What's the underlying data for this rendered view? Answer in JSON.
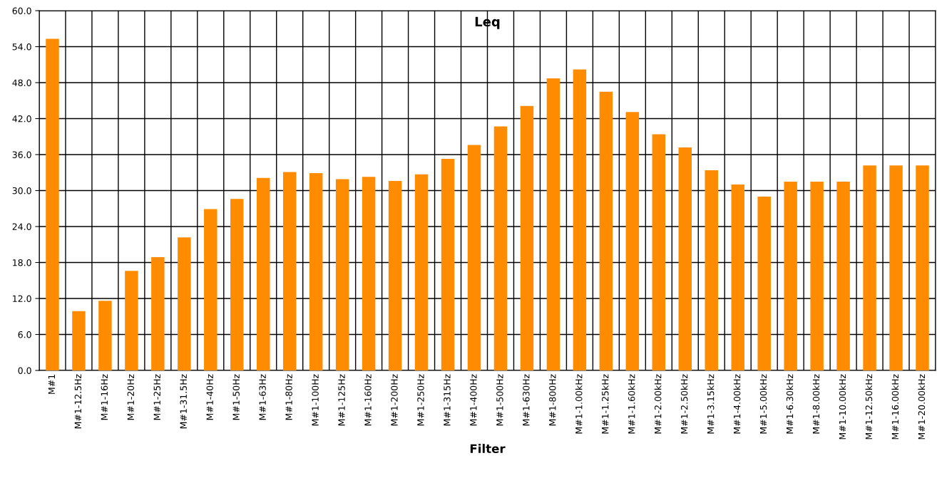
{
  "chart_data": {
    "type": "bar",
    "title": "Leq",
    "xlabel": "Filter",
    "categories": [
      "M#1",
      "M#1-12.5Hz",
      "M#1-16Hz",
      "M#1-20Hz",
      "M#1-25Hz",
      "M#1-31.5Hz",
      "M#1-40Hz",
      "M#1-50Hz",
      "M#1-63Hz",
      "M#1-80Hz",
      "M#1-100Hz",
      "M#1-125Hz",
      "M#1-160Hz",
      "M#1-200Hz",
      "M#1-250Hz",
      "M#1-315Hz",
      "M#1-400Hz",
      "M#1-500Hz",
      "M#1-630Hz",
      "M#1-800Hz",
      "M#1-1.00kHz",
      "M#1-1.25kHz",
      "M#1-1.60kHz",
      "M#1-2.00kHz",
      "M#1-2.50kHz",
      "M#1-3.15kHz",
      "M#1-4.00kHz",
      "M#1-5.00kHz",
      "M#1-6.30kHz",
      "M#1-8.00kHz",
      "M#1-10.00kHz",
      "M#1-12.50kHz",
      "M#1-16.00kHz",
      "M#1-20.00kHz"
    ],
    "values": [
      55.3,
      9.9,
      11.6,
      16.6,
      18.9,
      22.2,
      26.9,
      28.6,
      32.1,
      33.1,
      32.9,
      31.9,
      32.3,
      31.6,
      32.7,
      35.3,
      37.6,
      40.7,
      44.1,
      48.7,
      50.2,
      46.5,
      43.1,
      39.4,
      37.2,
      33.4,
      31.0,
      29.0,
      31.5,
      31.5,
      31.5,
      34.2,
      34.2,
      34.2
    ],
    "color": "#ff8c00",
    "ylim": [
      0,
      60
    ],
    "yticks": [
      {
        "value": 0,
        "label": "0.0"
      },
      {
        "value": 6,
        "label": "6.0"
      },
      {
        "value": 12,
        "label": "12.0"
      },
      {
        "value": 18,
        "label": "18.0"
      },
      {
        "value": 24,
        "label": "24.0"
      },
      {
        "value": 30,
        "label": "30.0"
      },
      {
        "value": 36,
        "label": "36.0"
      },
      {
        "value": 42,
        "label": "42.0"
      },
      {
        "value": 48,
        "label": "48.0"
      },
      {
        "value": 54,
        "label": "54.0"
      },
      {
        "value": 60,
        "label": "60.0"
      }
    ],
    "grid": true
  }
}
